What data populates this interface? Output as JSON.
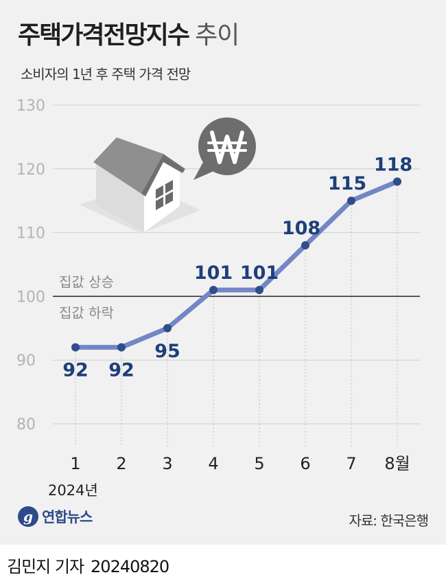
{
  "header": {
    "title": "주택가격전망지수",
    "title_suffix": "추이",
    "subtitle": "소비자의 1년 후 주택 가격 전망"
  },
  "chart_data": {
    "type": "line",
    "categories": [
      "1",
      "2",
      "3",
      "4",
      "5",
      "6",
      "7",
      "8월"
    ],
    "x_sublabel": "2024년",
    "values": [
      92,
      92,
      95,
      101,
      101,
      108,
      115,
      118
    ],
    "data_labels": [
      "92",
      "92",
      "95",
      "101",
      "101",
      "108",
      "115",
      "118"
    ],
    "y_ticks": [
      "80",
      "90",
      "100",
      "110",
      "120",
      "130"
    ],
    "ylim": [
      80,
      130
    ],
    "reference_line": {
      "value": 100,
      "label_above": "집값 상승",
      "label_below": "집값 하락"
    },
    "grid": true,
    "colors": {
      "line": "#7386c6",
      "marker": "#2f4d8c",
      "label": "#1e3f7a"
    },
    "illustration": "house-with-won-speech-bubble"
  },
  "footer": {
    "logo_glyph": "g",
    "logo_text": "연합뉴스",
    "source": "자료: 한국은행",
    "byline_name": "김민지 기자",
    "byline_date": "20240820"
  }
}
